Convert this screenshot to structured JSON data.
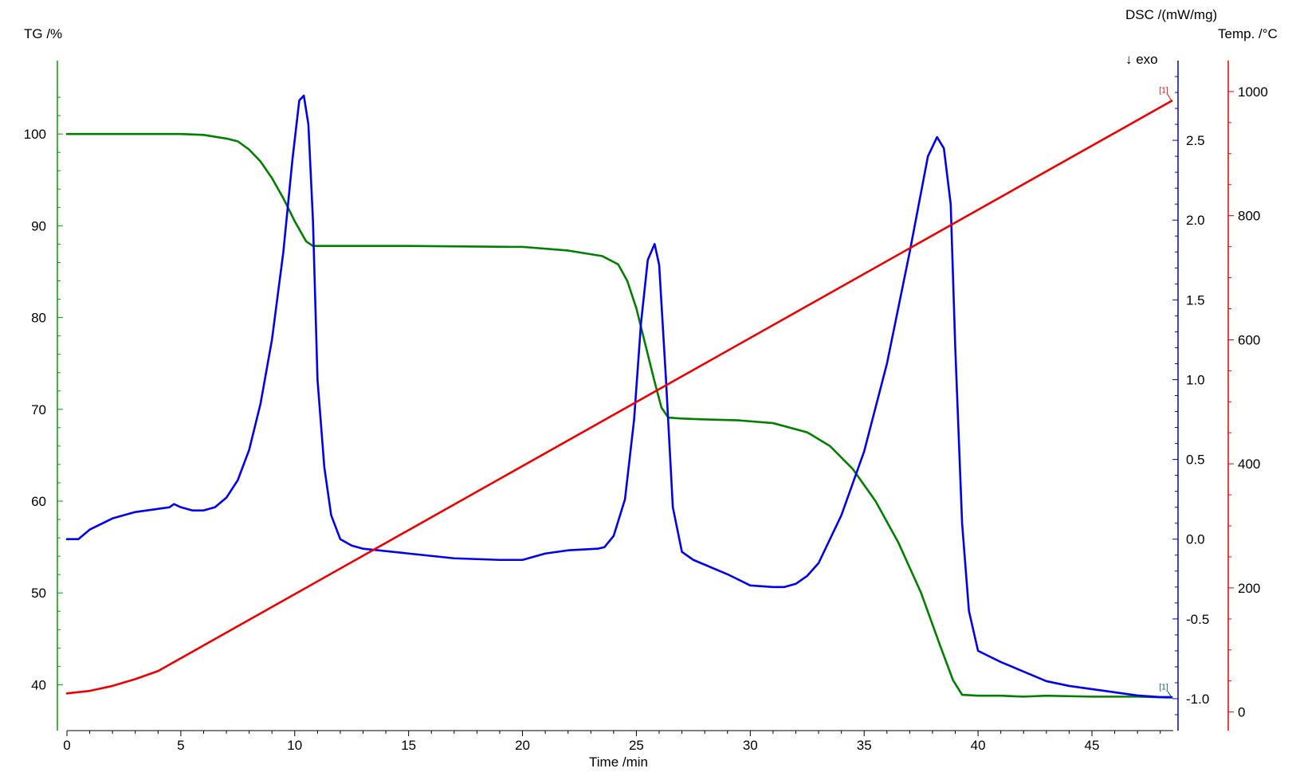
{
  "chart_data": {
    "type": "line",
    "axes": {
      "x": {
        "label": "Time /min",
        "range": [
          0,
          48.5
        ],
        "ticks": [
          0,
          5,
          10,
          15,
          20,
          25,
          30,
          35,
          40,
          45
        ],
        "color": "#000000"
      },
      "tg": {
        "label": "TG /%",
        "range": [
          35,
          108
        ],
        "ticks": [
          40,
          50,
          60,
          70,
          80,
          90,
          100
        ],
        "color": "#00a000"
      },
      "dsc": {
        "label": "DSC /(mW/mg)",
        "range": [
          -1.2,
          3.0
        ],
        "ticks": [
          -1.0,
          -0.5,
          0.0,
          0.5,
          1.0,
          1.5,
          2.0,
          2.5
        ],
        "tick_labels": [
          "-1.0",
          "-0.5",
          "0.0",
          "0.5",
          "1.0",
          "1.5",
          "2.0",
          "2.5"
        ],
        "color": "#0000dd",
        "annotation": "↓ exo"
      },
      "temp": {
        "label": "Temp. /°C",
        "range": [
          -30,
          1050
        ],
        "ticks": [
          0,
          200,
          400,
          600,
          800,
          1000
        ],
        "color": "#ee0000"
      }
    },
    "series": [
      {
        "axis": "tg",
        "color": "#007f00",
        "x": [
          0,
          2,
          4,
          5,
          6,
          7,
          7.5,
          8,
          8.5,
          9,
          9.5,
          10,
          10.5,
          10.8,
          11.5,
          15,
          19.5,
          20,
          22,
          23.5,
          24.2,
          24.6,
          25,
          25.4,
          25.8,
          26.1,
          26.4,
          27,
          28,
          29.5,
          31,
          32.5,
          33.5,
          34.5,
          35.5,
          36.5,
          37.5,
          38.3,
          38.9,
          39.3,
          40,
          41,
          42,
          43,
          45,
          47,
          48.5
        ],
        "values": [
          100,
          100,
          100,
          100,
          99.9,
          99.5,
          99.2,
          98.3,
          97.0,
          95.2,
          93.0,
          90.5,
          88.3,
          87.8,
          87.8,
          87.8,
          87.7,
          87.7,
          87.3,
          86.7,
          85.8,
          84.0,
          81.0,
          77.0,
          73.0,
          70.2,
          69.1,
          69.0,
          68.9,
          68.8,
          68.5,
          67.5,
          66.0,
          63.5,
          60.0,
          55.5,
          50.0,
          44.5,
          40.5,
          38.9,
          38.8,
          38.8,
          38.7,
          38.8,
          38.7,
          38.7,
          38.6
        ]
      },
      {
        "axis": "dsc",
        "color": "#0000ee",
        "x": [
          0,
          0.5,
          1,
          2,
          3,
          4,
          4.5,
          4.7,
          5,
          5.5,
          6,
          6.5,
          7,
          7.5,
          8,
          8.5,
          9,
          9.5,
          9.9,
          10.2,
          10.4,
          10.6,
          10.8,
          11,
          11.3,
          11.6,
          12,
          12.5,
          13,
          15,
          17,
          19,
          19.5,
          20,
          21,
          22,
          23.3,
          23.6,
          24,
          24.5,
          24.9,
          25.2,
          25.5,
          25.8,
          26.0,
          26.3,
          26.6,
          27,
          27.5,
          28,
          29,
          30,
          31,
          31.5,
          32,
          32.5,
          33,
          34,
          35,
          36,
          37,
          37.8,
          38.2,
          38.5,
          38.8,
          39.0,
          39.3,
          39.6,
          40,
          41,
          42,
          43,
          44,
          45,
          46,
          47,
          48,
          48.5
        ],
        "values": [
          0.0,
          0.0,
          0.06,
          0.13,
          0.17,
          0.19,
          0.2,
          0.22,
          0.2,
          0.18,
          0.18,
          0.2,
          0.26,
          0.37,
          0.56,
          0.85,
          1.25,
          1.8,
          2.38,
          2.75,
          2.78,
          2.6,
          2.0,
          1.0,
          0.45,
          0.15,
          0.0,
          -0.04,
          -0.06,
          -0.09,
          -0.12,
          -0.13,
          -0.13,
          -0.13,
          -0.09,
          -0.07,
          -0.06,
          -0.05,
          0.02,
          0.25,
          0.75,
          1.35,
          1.75,
          1.85,
          1.72,
          1.0,
          0.2,
          -0.08,
          -0.13,
          -0.16,
          -0.22,
          -0.29,
          -0.3,
          -0.3,
          -0.28,
          -0.23,
          -0.15,
          0.15,
          0.55,
          1.1,
          1.8,
          2.4,
          2.52,
          2.45,
          2.1,
          1.2,
          0.1,
          -0.45,
          -0.7,
          -0.77,
          -0.83,
          -0.89,
          -0.92,
          -0.94,
          -0.96,
          -0.98,
          -0.99,
          -0.99
        ]
      },
      {
        "axis": "temp",
        "color": "#ee0000",
        "x": [
          0,
          1,
          2,
          3,
          4,
          48.5
        ],
        "values": [
          30,
          34,
          42,
          53,
          66,
          985
        ]
      }
    ],
    "markers": [
      {
        "text": "[1]",
        "series": "temp",
        "color": "#ee0000"
      },
      {
        "text": "[1]",
        "series": "tg",
        "color": "#006060"
      }
    ]
  }
}
